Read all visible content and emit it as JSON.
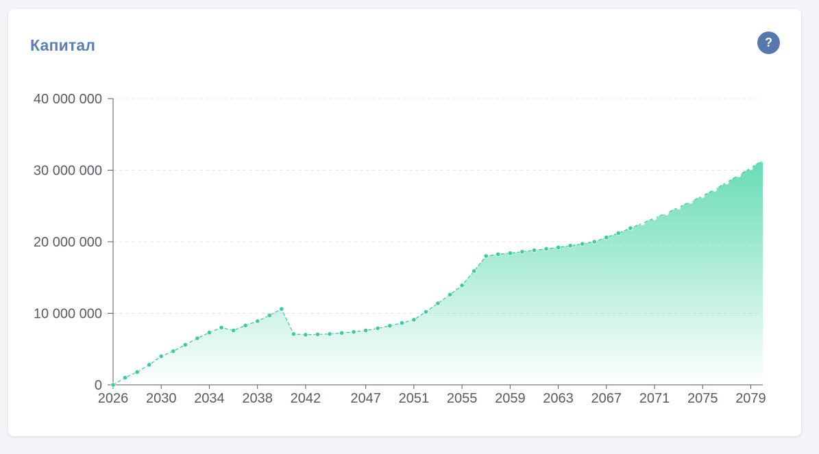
{
  "card": {
    "title": "Капитал",
    "help_label": "?"
  },
  "colors": {
    "title": "#5b7fb2",
    "help_button": "#5679ad",
    "series": "#3ccc99",
    "fill_top": "#6bdcb4",
    "grid": "#e3e6ea",
    "axis": "#555a63"
  },
  "chart_data": {
    "type": "area",
    "title": "Капитал",
    "xlabel": "",
    "ylabel": "",
    "ylim": [
      0,
      40000000
    ],
    "xlim": [
      2026,
      2080
    ],
    "grid": true,
    "legend": "none",
    "y_ticks": [
      0,
      10000000,
      20000000,
      30000000,
      40000000
    ],
    "y_tick_labels": [
      "0",
      "10 000 000",
      "20 000 000",
      "30 000 000",
      "40 000 000"
    ],
    "x_ticks": [
      2026,
      2030,
      2034,
      2038,
      2042,
      2047,
      2051,
      2055,
      2059,
      2063,
      2067,
      2071,
      2075,
      2079
    ],
    "x_tick_labels": [
      "2026",
      "2030",
      "2034",
      "2038",
      "2042",
      "2047",
      "2051",
      "2055",
      "2059",
      "2063",
      "2067",
      "2071",
      "2075",
      "2079"
    ],
    "series": [
      {
        "x": [
          2026,
          2027,
          2028,
          2029,
          2030,
          2031,
          2032,
          2033,
          2034,
          2035,
          2036,
          2037,
          2038,
          2039,
          2040,
          2041,
          2042,
          2043,
          2044,
          2045,
          2046,
          2047,
          2048,
          2049,
          2050,
          2051,
          2052,
          2053,
          2054,
          2055,
          2056,
          2057,
          2058,
          2059,
          2060,
          2061,
          2062,
          2063,
          2064,
          2065,
          2066,
          2067,
          2068,
          2069,
          2070,
          2071,
          2072,
          2073,
          2074,
          2075,
          2076,
          2077,
          2078,
          2079,
          2080
        ],
        "values": [
          0,
          1000000,
          1800000,
          2800000,
          4000000,
          4700000,
          5600000,
          6500000,
          7300000,
          8000000,
          7600000,
          8300000,
          8900000,
          9700000,
          10600000,
          7100000,
          7000000,
          7050000,
          7100000,
          7250000,
          7400000,
          7600000,
          7900000,
          8250000,
          8650000,
          9100000,
          10200000,
          11400000,
          12600000,
          13900000,
          15900000,
          18000000,
          18250000,
          18400000,
          18600000,
          18800000,
          19000000,
          19200000,
          19450000,
          19700000,
          20000000,
          20600000,
          21200000,
          21900000,
          22600000,
          23300000,
          24000000,
          24800000,
          25600000,
          26400000,
          27300000,
          28300000,
          29300000,
          30300000,
          31400000
        ]
      }
    ]
  }
}
